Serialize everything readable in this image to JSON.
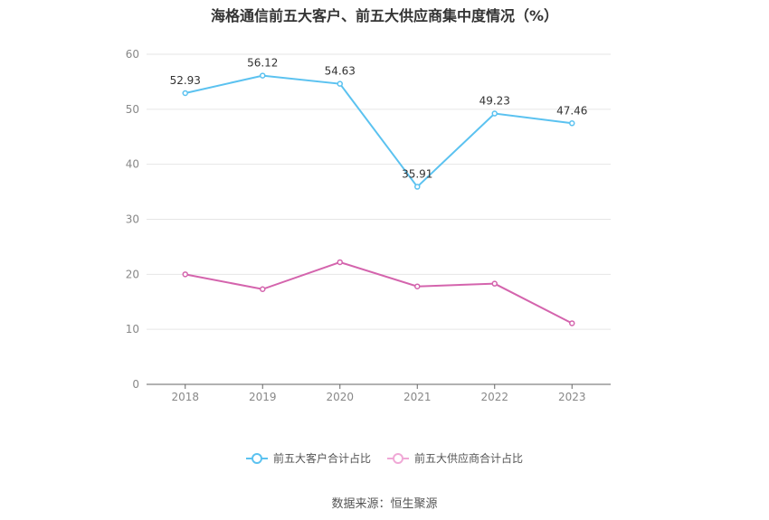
{
  "chart_data": {
    "type": "line",
    "title": "海格通信前五大客户、前五大供应商集中度情况（%）",
    "categories": [
      "2018",
      "2019",
      "2020",
      "2021",
      "2022",
      "2023"
    ],
    "ylim": [
      0,
      60
    ],
    "yticks": [
      "0",
      "10",
      "20",
      "30",
      "40",
      "50",
      "60"
    ],
    "grid": true,
    "legend_position": "bottom",
    "series": [
      {
        "name": "前五大客户合计占比",
        "color": "#5bc2f0",
        "values": [
          52.93,
          56.12,
          54.63,
          35.91,
          49.23,
          47.46
        ],
        "labels": [
          "52.93",
          "56.12",
          "54.63",
          "35.91",
          "49.23",
          "47.46"
        ]
      },
      {
        "name": "前五大供应商合计占比",
        "color": "#d464ad",
        "values": [
          20.0,
          17.3,
          22.2,
          17.8,
          18.3,
          11.1
        ]
      }
    ],
    "source": "数据来源：恒生聚源"
  }
}
